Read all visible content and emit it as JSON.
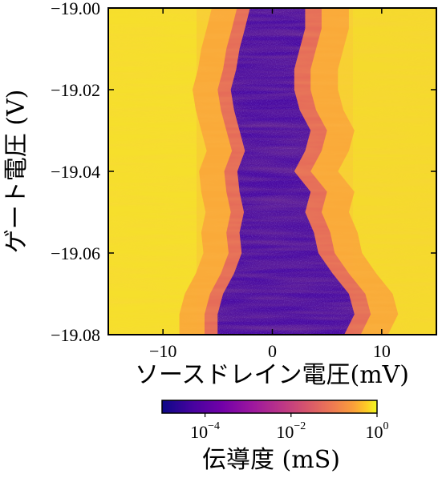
{
  "chart_data": {
    "type": "heatmap",
    "title": "",
    "xlabel": "ソースドレイン電圧(mV)",
    "ylabel": "ゲート電圧 (V)",
    "xlim": [
      -15,
      15
    ],
    "ylim": [
      -19.08,
      -19.0
    ],
    "y_inverted": true,
    "x_ticks": [
      {
        "value": -10,
        "label": "−10"
      },
      {
        "value": 0,
        "label": "0"
      },
      {
        "value": 10,
        "label": "10"
      }
    ],
    "y_ticks": [
      {
        "value": -19.0,
        "label": "−19.00"
      },
      {
        "value": -19.02,
        "label": "−19.02"
      },
      {
        "value": -19.04,
        "label": "−19.04"
      },
      {
        "value": -19.06,
        "label": "−19.06"
      },
      {
        "value": -19.08,
        "label": "−19.08"
      }
    ],
    "colormap": "plasma",
    "color_scale": "log",
    "colorbar": {
      "label": "伝導度 (mS)",
      "range": [
        1e-05,
        1
      ],
      "ticks": [
        {
          "value": 0.0001,
          "base": "10",
          "exp": "−4"
        },
        {
          "value": 0.01,
          "base": "10",
          "exp": "−2"
        },
        {
          "value": 1,
          "base": "10",
          "exp": "0"
        }
      ],
      "orientation": "horizontal",
      "placement": "bottom"
    },
    "low_conductance_region": {
      "description_values": "approximate edges of the low-conductance (blockade) region in mV versus gate voltage",
      "gate": [
        -19.0,
        -19.005,
        -19.01,
        -19.015,
        -19.02,
        -19.025,
        -19.03,
        -19.035,
        -19.04,
        -19.045,
        -19.05,
        -19.055,
        -19.06,
        -19.065,
        -19.07,
        -19.075,
        -19.08
      ],
      "left_edge": [
        -2.0,
        -2.5,
        -3.0,
        -3.3,
        -3.8,
        -3.5,
        -3.0,
        -2.5,
        -3.2,
        -3.0,
        -2.6,
        -3.0,
        -2.8,
        -3.5,
        -4.5,
        -5.0,
        -5.0
      ],
      "right_edge": [
        3.0,
        3.0,
        2.5,
        2.0,
        2.0,
        2.5,
        3.5,
        3.0,
        2.0,
        3.5,
        3.0,
        3.8,
        4.2,
        5.5,
        7.0,
        7.5,
        6.5
      ]
    },
    "colors": {
      "high": "#f0f921",
      "mid_high": "#fca636",
      "mid": "#e16462",
      "mid_low": "#b12a90",
      "low": "#6a00a8",
      "lowest": "#3a049a"
    }
  }
}
